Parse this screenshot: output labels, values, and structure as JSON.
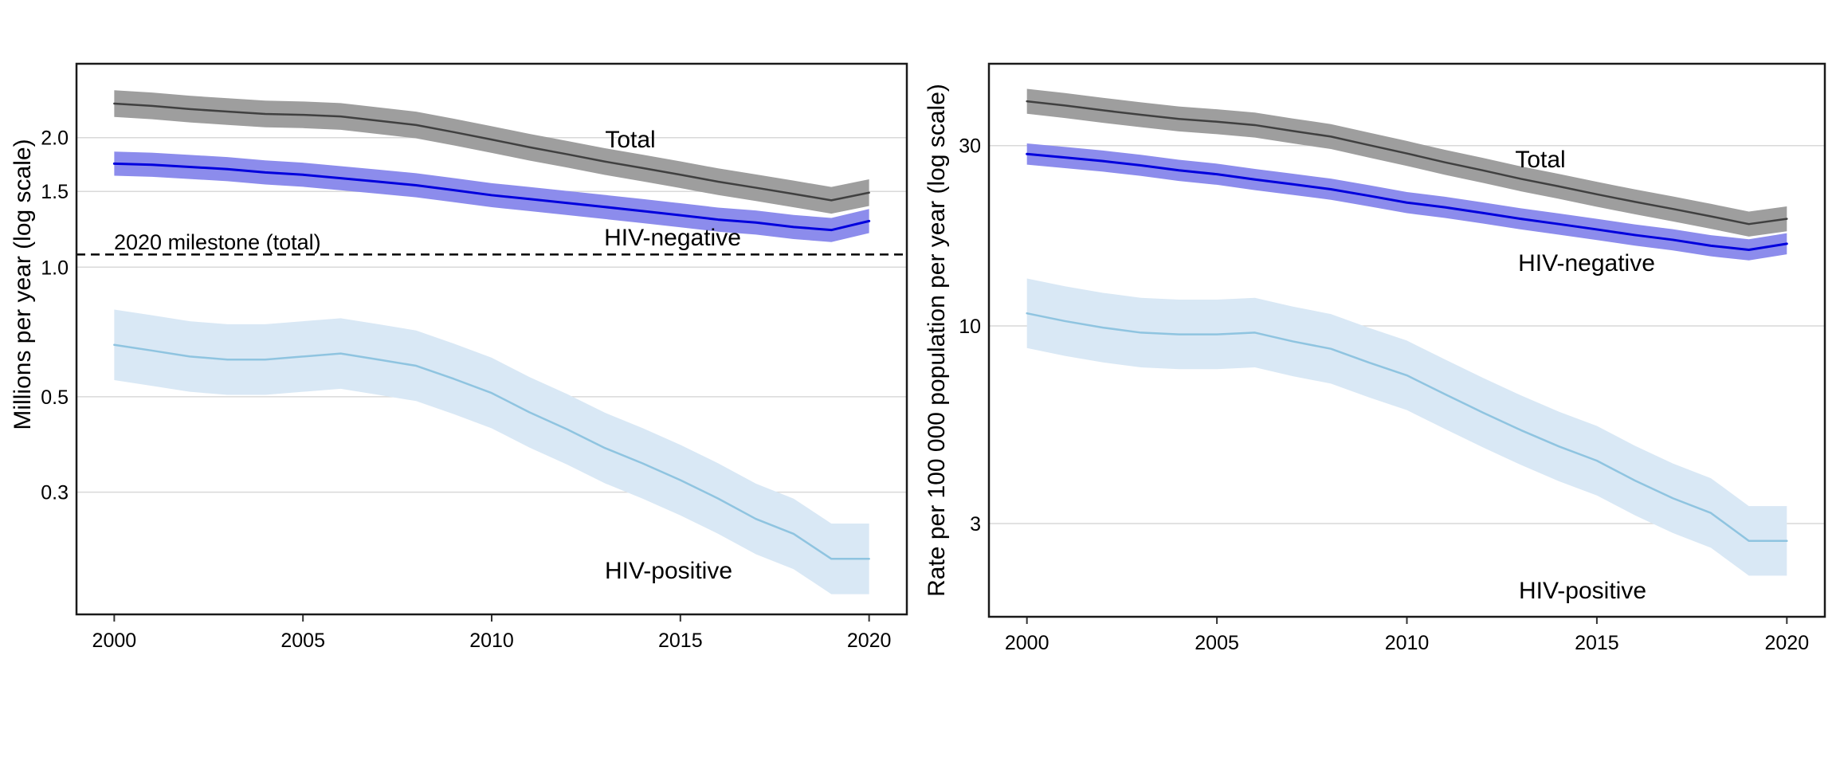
{
  "figure": {
    "background_color": "#ffffff",
    "panel_border_color": "#1a1a1a",
    "gridline_color": "#d9d9d9",
    "tick_color": "#333333",
    "text_color": "#000000"
  },
  "chart_data": [
    {
      "type": "line",
      "panel": "left",
      "title": "",
      "xlabel": "",
      "ylabel": "Millions per year (log scale)",
      "scale": "log",
      "grid": true,
      "xlim": [
        1999,
        2021
      ],
      "ylim": [
        0.156,
        2.97
      ],
      "x_ticks": [
        2000,
        2005,
        2010,
        2015,
        2020
      ],
      "x_tick_labels": [
        "2000",
        "2005",
        "2010",
        "2015",
        "2020"
      ],
      "y_ticks": [
        2.0,
        1.5,
        1.0,
        0.5,
        0.3
      ],
      "y_tick_labels": [
        "2.0",
        "1.5",
        "1.0",
        "0.5",
        "0.3"
      ],
      "x": [
        2000,
        2001,
        2002,
        2003,
        2004,
        2005,
        2006,
        2007,
        2008,
        2009,
        2010,
        2011,
        2012,
        2013,
        2014,
        2015,
        2016,
        2017,
        2018,
        2019,
        2020
      ],
      "series": [
        {
          "name": "Total",
          "line_color": "#404040",
          "band_color": "#9e9e9e",
          "band_log10_halfwidth": 0.031,
          "values": [
            2.4,
            2.37,
            2.33,
            2.3,
            2.27,
            2.26,
            2.24,
            2.19,
            2.14,
            2.06,
            1.98,
            1.9,
            1.83,
            1.76,
            1.7,
            1.64,
            1.58,
            1.53,
            1.48,
            1.43,
            1.49
          ]
        },
        {
          "name": "HIV-negative",
          "line_color": "#0000dd",
          "band_color": "#8c8cec",
          "band_log10_halfwidth": 0.028,
          "values": [
            1.74,
            1.73,
            1.71,
            1.69,
            1.66,
            1.64,
            1.61,
            1.58,
            1.55,
            1.51,
            1.47,
            1.44,
            1.41,
            1.38,
            1.35,
            1.32,
            1.29,
            1.27,
            1.24,
            1.22,
            1.28
          ]
        },
        {
          "name": "HIV-positive",
          "line_color": "#8fc4e0",
          "band_color": "#d9e8f5",
          "band_log10_halfwidth": 0.082,
          "values": [
            0.66,
            0.64,
            0.62,
            0.61,
            0.61,
            0.62,
            0.63,
            0.61,
            0.59,
            0.55,
            0.51,
            0.46,
            0.42,
            0.38,
            0.35,
            0.32,
            0.29,
            0.26,
            0.24,
            0.21,
            0.21
          ]
        }
      ],
      "milestone": {
        "label": "2020 milestone (total)",
        "value": 1.07,
        "line_style": "dashed",
        "color": "#000000"
      }
    },
    {
      "type": "line",
      "panel": "right",
      "title": "",
      "xlabel": "",
      "ylabel": "Rate per 100 000 population per year (log scale)",
      "scale": "log",
      "grid": true,
      "xlim": [
        1999,
        2021
      ],
      "ylim": [
        1.7,
        49.4
      ],
      "x_ticks": [
        2000,
        2005,
        2010,
        2015,
        2020
      ],
      "x_tick_labels": [
        "2000",
        "2005",
        "2010",
        "2015",
        "2020"
      ],
      "y_ticks": [
        30,
        10,
        3
      ],
      "y_tick_labels": [
        "30",
        "10",
        "3"
      ],
      "x": [
        2000,
        2001,
        2002,
        2003,
        2004,
        2005,
        2006,
        2007,
        2008,
        2009,
        2010,
        2011,
        2012,
        2013,
        2014,
        2015,
        2016,
        2017,
        2018,
        2019,
        2020
      ],
      "series": [
        {
          "name": "Total",
          "line_color": "#404040",
          "band_color": "#9e9e9e",
          "band_log10_halfwidth": 0.033,
          "values": [
            39.3,
            38.3,
            37.2,
            36.2,
            35.3,
            34.7,
            34.0,
            32.8,
            31.7,
            30.1,
            28.6,
            27.1,
            25.8,
            24.5,
            23.4,
            22.3,
            21.3,
            20.4,
            19.5,
            18.6,
            19.2
          ]
        },
        {
          "name": "HIV-negative",
          "line_color": "#0000dd",
          "band_color": "#8c8cec",
          "band_log10_halfwidth": 0.028,
          "values": [
            28.5,
            27.9,
            27.3,
            26.6,
            25.8,
            25.2,
            24.4,
            23.7,
            23.0,
            22.1,
            21.2,
            20.6,
            19.9,
            19.2,
            18.6,
            18.0,
            17.4,
            16.9,
            16.3,
            15.9,
            16.5
          ]
        },
        {
          "name": "HIV-positive",
          "line_color": "#8fc4e0",
          "band_color": "#d9e8f5",
          "band_log10_halfwidth": 0.092,
          "values": [
            10.8,
            10.3,
            9.9,
            9.6,
            9.5,
            9.5,
            9.6,
            9.1,
            8.7,
            8.0,
            7.4,
            6.6,
            5.9,
            5.3,
            4.8,
            4.4,
            3.9,
            3.5,
            3.2,
            2.7,
            2.7
          ]
        }
      ]
    }
  ]
}
